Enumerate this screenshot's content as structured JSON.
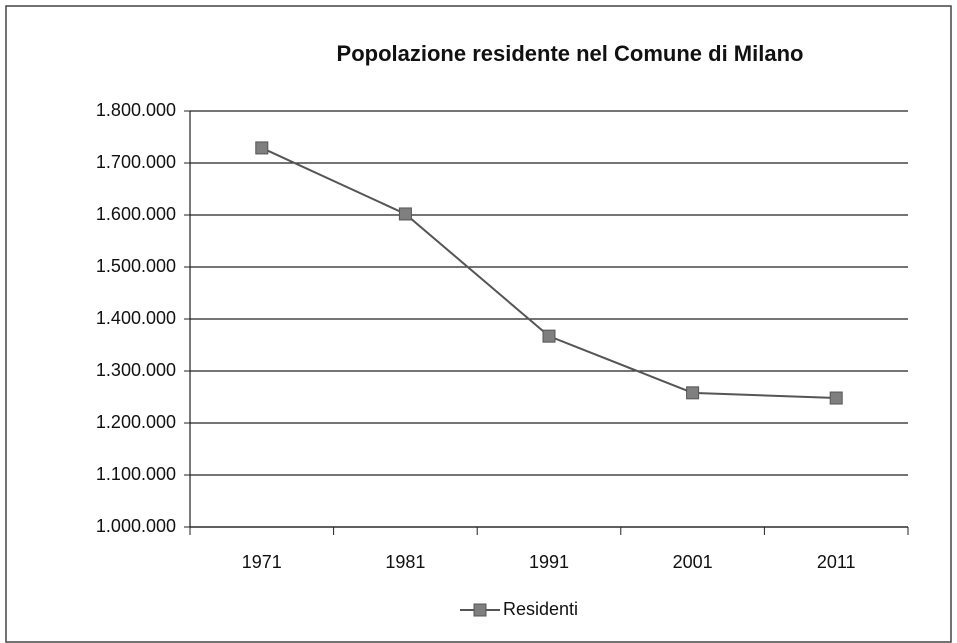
{
  "chart_data": {
    "type": "line",
    "title": "Popolazione residente nel Comune di Milano",
    "categories": [
      "1971",
      "1981",
      "1991",
      "2001",
      "2011"
    ],
    "series": [
      {
        "name": "Residenti",
        "color": "#7f7f7f",
        "values": [
          1729000,
          1602000,
          1367000,
          1258000,
          1248000
        ]
      }
    ],
    "ylim": [
      1000000,
      1800000
    ],
    "yticks": [
      {
        "value": 1000000,
        "label": "1.000.000"
      },
      {
        "value": 1100000,
        "label": "1.100.000"
      },
      {
        "value": 1200000,
        "label": "1.200.000"
      },
      {
        "value": 1300000,
        "label": "1.300.000"
      },
      {
        "value": 1400000,
        "label": "1.400.000"
      },
      {
        "value": 1500000,
        "label": "1.500.000"
      },
      {
        "value": 1600000,
        "label": "1.600.000"
      },
      {
        "value": 1700000,
        "label": "1.700.000"
      },
      {
        "value": 1800000,
        "label": "1.800.000"
      }
    ],
    "grid": true,
    "legend": "bottom"
  }
}
